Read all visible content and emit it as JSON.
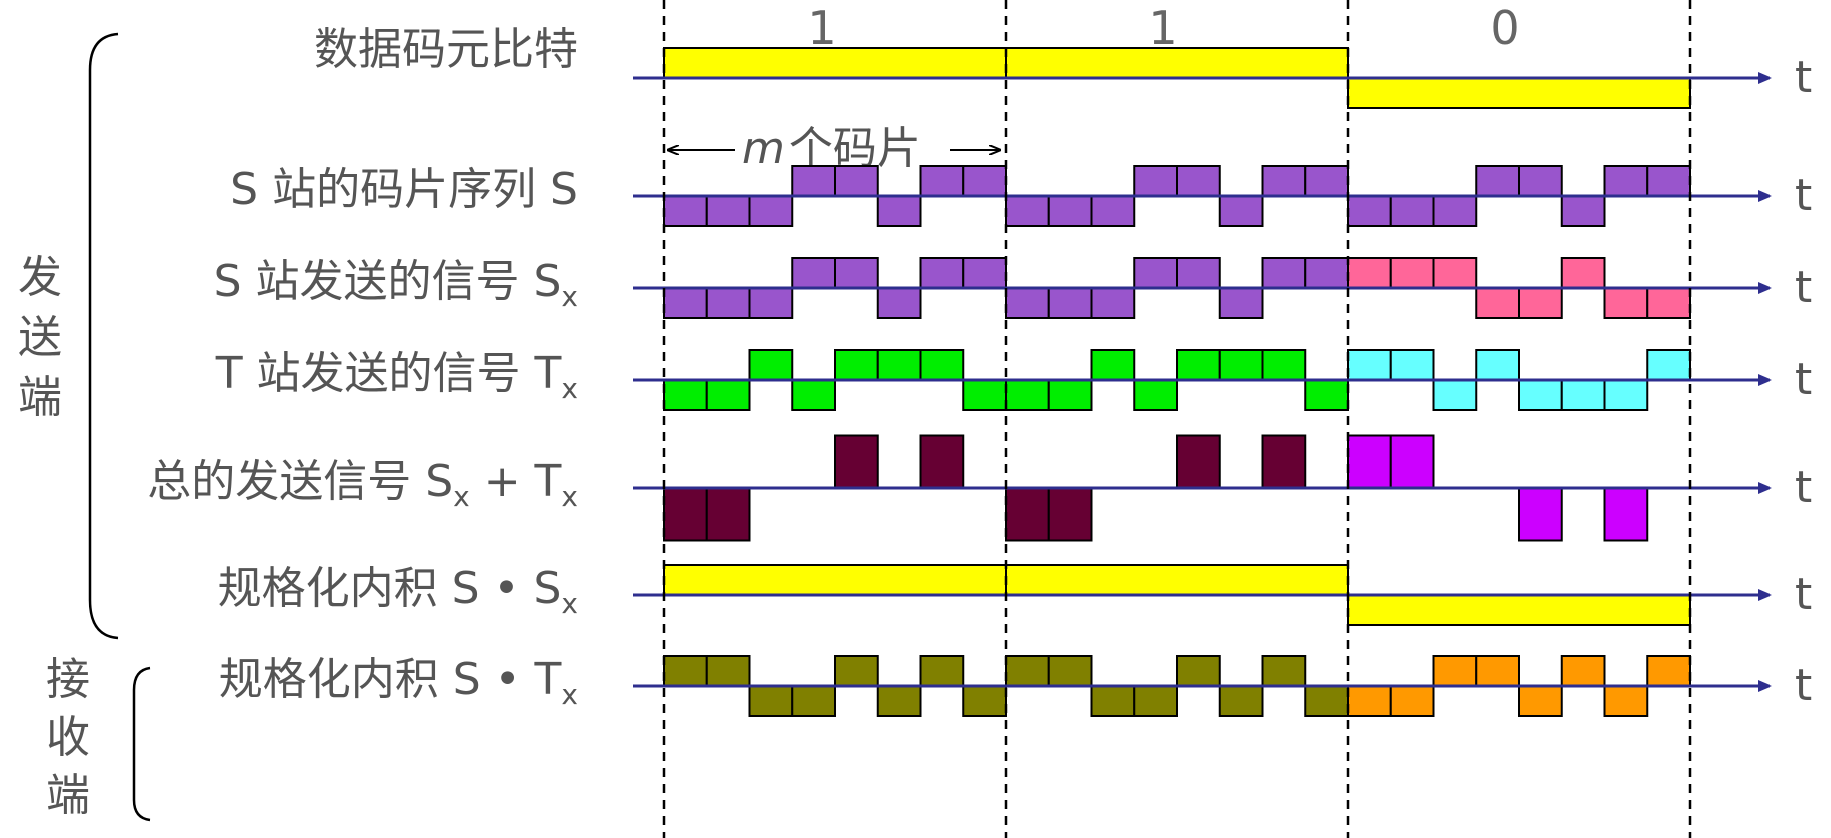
{
  "bits": [
    "1",
    "1",
    "0"
  ],
  "chip_span_label_italic": "m",
  "chip_span_label": "个码片",
  "group_labels": {
    "send": [
      "发",
      "送",
      "端"
    ],
    "receive": [
      "接",
      "收",
      "端"
    ]
  },
  "axis_label": "t",
  "rows": [
    {
      "id": "data-bits",
      "label": "数据码元比特",
      "sub": "",
      "label2": "",
      "sub2": "",
      "color_pos": "#FFFF00",
      "color_neg": "#FFFF00",
      "levels": [
        1,
        1,
        -1
      ],
      "per_bit": false
    },
    {
      "id": "s-chip-seq",
      "label": "S 站的码片序列 S",
      "sub": "",
      "label2": "",
      "sub2": "",
      "color_pos": "#9955CC",
      "color_neg": "#9955CC",
      "levels": [
        -1,
        -1,
        -1,
        1,
        1,
        -1,
        1,
        1,
        -1,
        -1,
        -1,
        1,
        1,
        -1,
        1,
        1,
        -1,
        -1,
        -1,
        1,
        1,
        -1,
        1,
        1
      ],
      "per_bit": false
    },
    {
      "id": "s-sent",
      "label": "S 站发送的信号 S",
      "sub": "x",
      "label2": "",
      "sub2": "",
      "color_pos": "#9955CC",
      "color_neg": "#9955CC",
      "color3_pos": "#FF6699",
      "color3_neg": "#FF6699",
      "levels": [
        -1,
        -1,
        -1,
        1,
        1,
        -1,
        1,
        1,
        -1,
        -1,
        -1,
        1,
        1,
        -1,
        1,
        1,
        1,
        1,
        1,
        -1,
        -1,
        1,
        -1,
        -1
      ],
      "per_bit": true
    },
    {
      "id": "t-sent",
      "label": "T 站发送的信号 T",
      "sub": "x",
      "label2": "",
      "sub2": "",
      "color_pos": "#00EE00",
      "color_neg": "#00EE00",
      "color3_pos": "#66FFFF",
      "color3_neg": "#66FFFF",
      "levels": [
        -1,
        -1,
        1,
        -1,
        1,
        1,
        1,
        -1,
        -1,
        -1,
        1,
        -1,
        1,
        1,
        1,
        -1,
        1,
        1,
        -1,
        1,
        -1,
        -1,
        -1,
        1
      ],
      "per_bit": true
    },
    {
      "id": "sum-sent",
      "label": "总的发送信号 S",
      "sub": "x",
      "label2": " + T",
      "sub2": "x",
      "color_pos": "#660033",
      "color_neg": "#660033",
      "color3_pos": "#CC00FF",
      "color3_neg": "#CC00FF",
      "levels": [
        -2,
        -2,
        0,
        0,
        2,
        0,
        2,
        0,
        -2,
        -2,
        0,
        0,
        2,
        0,
        2,
        0,
        2,
        2,
        0,
        0,
        -2,
        0,
        -2,
        0
      ],
      "per_bit": true,
      "scale": 0.5
    },
    {
      "id": "inner-s",
      "label": "规格化内积 S • S",
      "sub": "x",
      "label2": "",
      "sub2": "",
      "color_pos": "#FFFF00",
      "color_neg": "#FFFF00",
      "levels": [
        1,
        1,
        -1
      ],
      "per_bit": false
    },
    {
      "id": "inner-t",
      "label": "规格化内积 S • T",
      "sub": "x",
      "label2": "",
      "sub2": "",
      "color_pos": "#808000",
      "color_neg": "#808000",
      "color3_pos": "#FF9900",
      "color3_neg": "#FF9900",
      "levels": [
        1,
        1,
        -1,
        -1,
        1,
        -1,
        1,
        -1,
        1,
        1,
        -1,
        -1,
        1,
        -1,
        1,
        -1,
        -1,
        -1,
        1,
        1,
        -1,
        1,
        -1,
        1
      ],
      "per_bit": true
    }
  ]
}
